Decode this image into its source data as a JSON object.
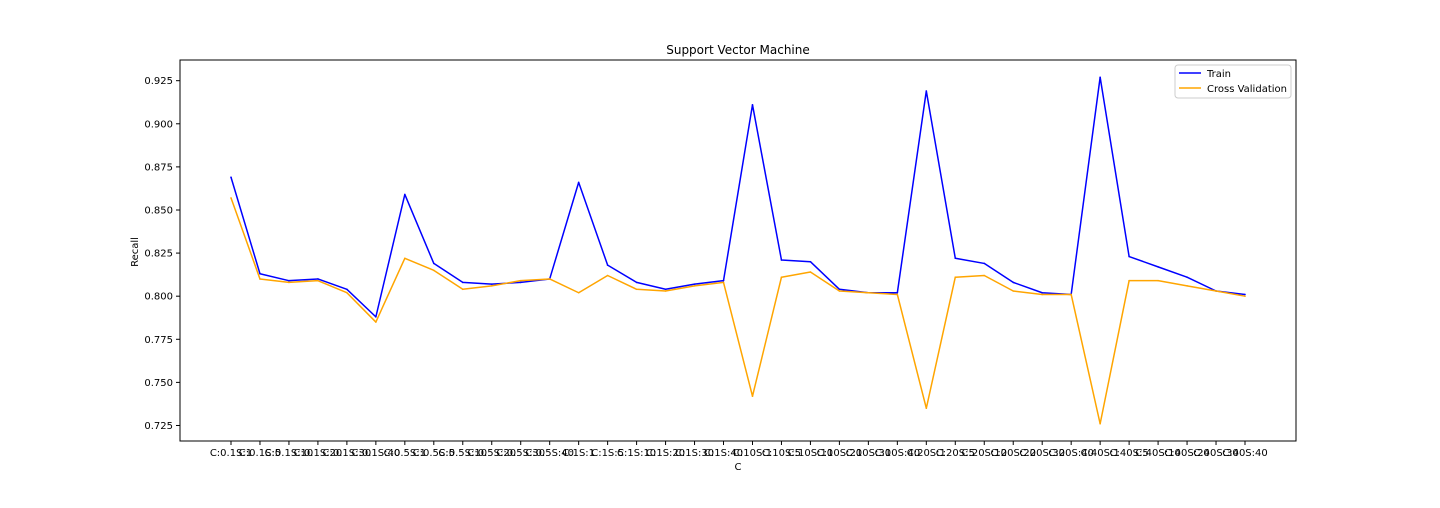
{
  "chart_data": {
    "type": "line",
    "title": "Support Vector Machine",
    "xlabel": "C",
    "ylabel": "Recall",
    "categories": [
      "C:0.1S:1",
      "C:0.1S:5",
      "C:0.1S:10",
      "C:0.1S:20",
      "C:0.1S:30",
      "C:0.1S:40",
      "C:0.5S:1",
      "C:0.5S:5",
      "C:0.5S:10",
      "C:0.5S:20",
      "C:0.5S:30",
      "C:0.5S:40",
      "C:1S:1",
      "C:1S:5",
      "C:1S:10",
      "C:1S:20",
      "C:1S:30",
      "C:1S:40",
      "C:10S:1",
      "C:10S:5",
      "C:10S:10",
      "C:10S:20",
      "C:10S:30",
      "C:10S:40",
      "C:20S:1",
      "C:20S:5",
      "C:20S:10",
      "C:20S:20",
      "C:20S:30",
      "C:20S:40",
      "C:40S:1",
      "C:40S:5",
      "C:40S:10",
      "C:40S:20",
      "C:40S:30",
      "C:40S:40"
    ],
    "series": [
      {
        "name": "Train",
        "color": "#0000ff",
        "values": [
          0.869,
          0.813,
          0.809,
          0.81,
          0.804,
          0.788,
          0.859,
          0.819,
          0.808,
          0.807,
          0.808,
          0.81,
          0.866,
          0.818,
          0.808,
          0.804,
          0.807,
          0.809,
          0.911,
          0.821,
          0.82,
          0.804,
          0.802,
          0.802,
          0.919,
          0.822,
          0.819,
          0.808,
          0.802,
          0.801,
          0.927,
          0.823,
          0.817,
          0.811,
          0.803,
          0.801
        ]
      },
      {
        "name": "Cross Validation",
        "color": "#ffa500",
        "values": [
          0.857,
          0.81,
          0.808,
          0.809,
          0.802,
          0.785,
          0.822,
          0.815,
          0.804,
          0.806,
          0.809,
          0.81,
          0.802,
          0.812,
          0.804,
          0.803,
          0.806,
          0.808,
          0.742,
          0.811,
          0.814,
          0.803,
          0.802,
          0.801,
          0.735,
          0.811,
          0.812,
          0.803,
          0.801,
          0.801,
          0.726,
          0.809,
          0.809,
          0.806,
          0.803,
          0.8
        ]
      }
    ],
    "ylim": [
      0.716,
      0.937
    ],
    "yticks": [
      0.725,
      0.75,
      0.775,
      0.8,
      0.825,
      0.85,
      0.875,
      0.9,
      0.925
    ],
    "ytick_labels": [
      "0.725",
      "0.750",
      "0.775",
      "0.800",
      "0.825",
      "0.850",
      "0.875",
      "0.900",
      "0.925"
    ],
    "grid": false,
    "legend_position": "top-right"
  }
}
